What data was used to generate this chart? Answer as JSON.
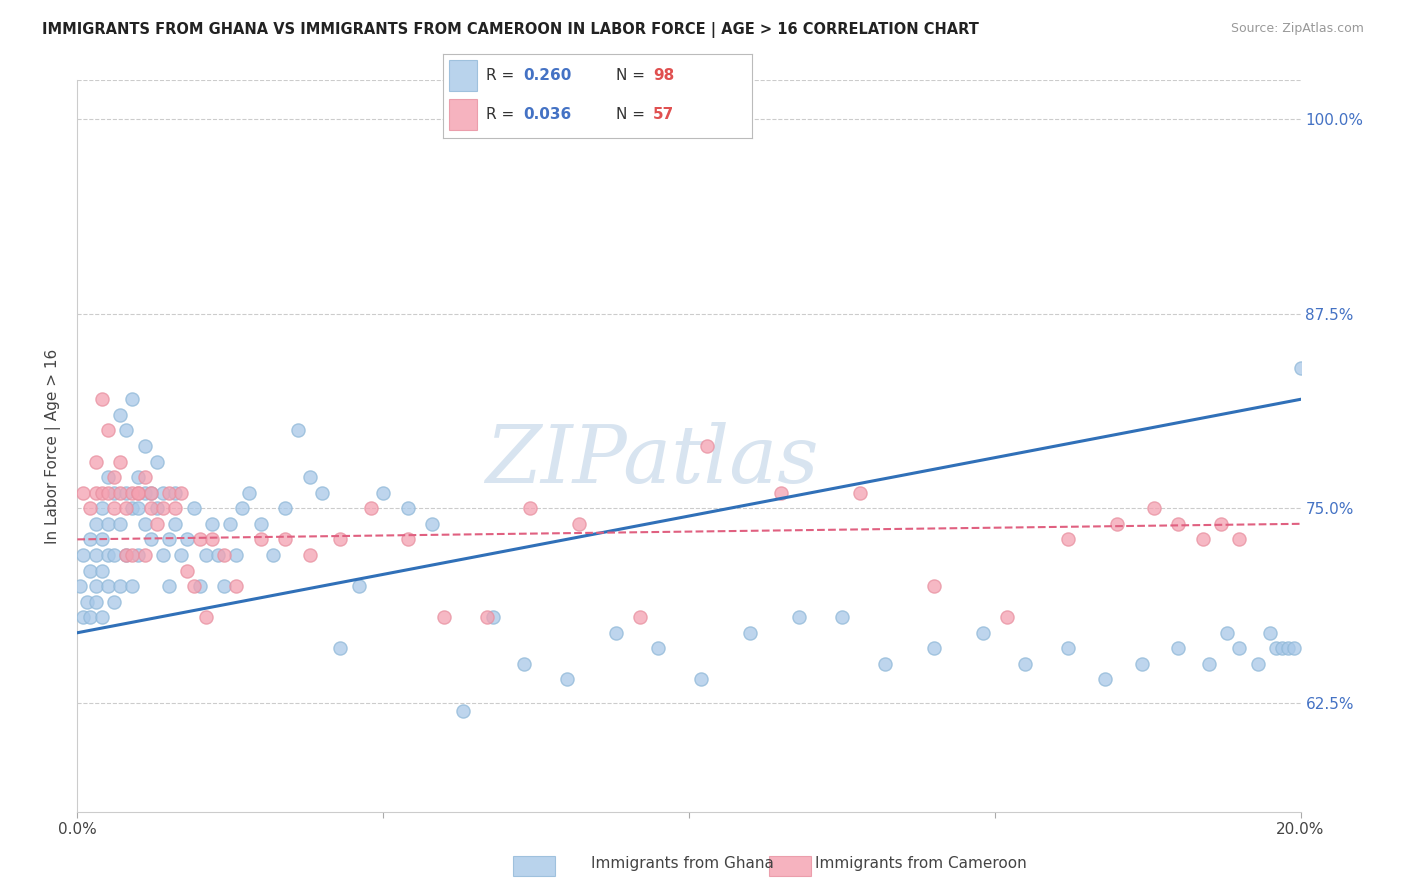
{
  "title": "IMMIGRANTS FROM GHANA VS IMMIGRANTS FROM CAMEROON IN LABOR FORCE | AGE > 16 CORRELATION CHART",
  "source": "Source: ZipAtlas.com",
  "ylabel": "In Labor Force | Age > 16",
  "xlim": [
    0.0,
    0.2
  ],
  "ylim": [
    0.555,
    1.025
  ],
  "xticks": [
    0.0,
    0.05,
    0.1,
    0.15,
    0.2
  ],
  "xticklabels": [
    "0.0%",
    "",
    "",
    "",
    "20.0%"
  ],
  "ytick_positions": [
    0.625,
    0.75,
    0.875,
    1.0
  ],
  "ytick_labels": [
    "62.5%",
    "75.0%",
    "87.5%",
    "100.0%"
  ],
  "ghana_color": "#a8c8e8",
  "cameroon_color": "#f4a0b0",
  "ghana_line_color": "#3070b8",
  "cameroon_line_color": "#e06080",
  "ghana_R": 0.26,
  "ghana_N": 98,
  "cameroon_R": 0.036,
  "cameroon_N": 57,
  "legend_ghana": "Immigrants from Ghana",
  "legend_cameroon": "Immigrants from Cameroon",
  "ghana_x": [
    0.0005,
    0.001,
    0.001,
    0.0015,
    0.002,
    0.002,
    0.002,
    0.003,
    0.003,
    0.003,
    0.003,
    0.004,
    0.004,
    0.004,
    0.004,
    0.005,
    0.005,
    0.005,
    0.005,
    0.006,
    0.006,
    0.006,
    0.007,
    0.007,
    0.007,
    0.008,
    0.008,
    0.008,
    0.009,
    0.009,
    0.009,
    0.01,
    0.01,
    0.01,
    0.011,
    0.011,
    0.011,
    0.012,
    0.012,
    0.013,
    0.013,
    0.014,
    0.014,
    0.015,
    0.015,
    0.016,
    0.016,
    0.017,
    0.018,
    0.019,
    0.02,
    0.021,
    0.022,
    0.023,
    0.024,
    0.025,
    0.026,
    0.027,
    0.028,
    0.03,
    0.032,
    0.034,
    0.036,
    0.038,
    0.04,
    0.043,
    0.046,
    0.05,
    0.054,
    0.058,
    0.063,
    0.068,
    0.073,
    0.08,
    0.088,
    0.095,
    0.102,
    0.11,
    0.118,
    0.125,
    0.132,
    0.14,
    0.148,
    0.155,
    0.162,
    0.168,
    0.174,
    0.18,
    0.185,
    0.188,
    0.19,
    0.193,
    0.195,
    0.196,
    0.197,
    0.198,
    0.199,
    0.2
  ],
  "ghana_y": [
    0.7,
    0.68,
    0.72,
    0.69,
    0.71,
    0.68,
    0.73,
    0.7,
    0.72,
    0.69,
    0.74,
    0.71,
    0.73,
    0.68,
    0.75,
    0.7,
    0.72,
    0.74,
    0.77,
    0.72,
    0.76,
    0.69,
    0.7,
    0.81,
    0.74,
    0.76,
    0.72,
    0.8,
    0.7,
    0.82,
    0.75,
    0.75,
    0.77,
    0.72,
    0.76,
    0.74,
    0.79,
    0.76,
    0.73,
    0.75,
    0.78,
    0.72,
    0.76,
    0.7,
    0.73,
    0.76,
    0.74,
    0.72,
    0.73,
    0.75,
    0.7,
    0.72,
    0.74,
    0.72,
    0.7,
    0.74,
    0.72,
    0.75,
    0.76,
    0.74,
    0.72,
    0.75,
    0.8,
    0.77,
    0.76,
    0.66,
    0.7,
    0.76,
    0.75,
    0.74,
    0.62,
    0.68,
    0.65,
    0.64,
    0.67,
    0.66,
    0.64,
    0.67,
    0.68,
    0.68,
    0.65,
    0.66,
    0.67,
    0.65,
    0.66,
    0.64,
    0.65,
    0.66,
    0.65,
    0.67,
    0.66,
    0.65,
    0.67,
    0.66,
    0.66,
    0.66,
    0.66,
    0.84
  ],
  "cameroon_x": [
    0.001,
    0.002,
    0.003,
    0.003,
    0.004,
    0.004,
    0.005,
    0.005,
    0.006,
    0.006,
    0.007,
    0.007,
    0.008,
    0.008,
    0.009,
    0.009,
    0.01,
    0.01,
    0.011,
    0.011,
    0.012,
    0.012,
    0.013,
    0.014,
    0.015,
    0.016,
    0.017,
    0.018,
    0.019,
    0.02,
    0.021,
    0.022,
    0.024,
    0.026,
    0.03,
    0.034,
    0.038,
    0.043,
    0.048,
    0.054,
    0.06,
    0.067,
    0.074,
    0.082,
    0.092,
    0.103,
    0.115,
    0.128,
    0.14,
    0.152,
    0.162,
    0.17,
    0.176,
    0.18,
    0.184,
    0.187,
    0.19
  ],
  "cameroon_y": [
    0.76,
    0.75,
    0.78,
    0.76,
    0.82,
    0.76,
    0.76,
    0.8,
    0.77,
    0.75,
    0.76,
    0.78,
    0.72,
    0.75,
    0.72,
    0.76,
    0.76,
    0.76,
    0.72,
    0.77,
    0.76,
    0.75,
    0.74,
    0.75,
    0.76,
    0.75,
    0.76,
    0.71,
    0.7,
    0.73,
    0.68,
    0.73,
    0.72,
    0.7,
    0.73,
    0.73,
    0.72,
    0.73,
    0.75,
    0.73,
    0.68,
    0.68,
    0.75,
    0.74,
    0.68,
    0.79,
    0.76,
    0.76,
    0.7,
    0.68,
    0.73,
    0.74,
    0.75,
    0.74,
    0.73,
    0.74,
    0.73
  ],
  "ghana_trend_x": [
    0.0,
    0.2
  ],
  "ghana_trend_y": [
    0.67,
    0.82
  ],
  "cameroon_trend_x": [
    0.0,
    0.2
  ],
  "cameroon_trend_y": [
    0.73,
    0.74
  ],
  "background_color": "#ffffff",
  "grid_color": "#cccccc",
  "watermark_text": "ZIPatlas",
  "watermark_color": "#d8e4f0"
}
